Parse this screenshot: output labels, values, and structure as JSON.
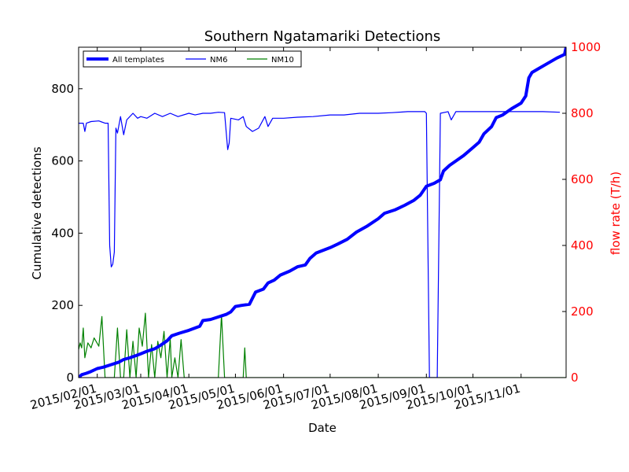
{
  "chart_data": {
    "type": "line",
    "title": "Southern Ngatamariki Detections",
    "xlabel": "Date",
    "ylabel": "Cumulative detections",
    "y2label": "flow rate (T/h)",
    "xlim": [
      "2015-01-20",
      "2015-11-30"
    ],
    "ylim": [
      0,
      915
    ],
    "y2lim": [
      0,
      1000
    ],
    "x_ticks": [
      "2015/02/01",
      "2015/03/01",
      "2015/04/01",
      "2015/05/01",
      "2015/06/01",
      "2015/07/01",
      "2015/08/01",
      "2015/09/01",
      "2015/10/01",
      "2015/11/01"
    ],
    "y_ticks": [
      0,
      200,
      400,
      600,
      800
    ],
    "y2_ticks": [
      0,
      200,
      400,
      600,
      800,
      1000
    ],
    "grid": false,
    "legend_position": "top-left",
    "colors": {
      "all_templates": "#0000ff",
      "nm6": "#0000ff",
      "nm10": "#008000",
      "y2_axis": "#ff0000"
    },
    "series": [
      {
        "name": "All templates",
        "axis": "left",
        "points": [
          [
            "2015-01-20",
            0
          ],
          [
            "2015-01-22",
            8
          ],
          [
            "2015-01-25",
            12
          ],
          [
            "2015-01-28",
            17
          ],
          [
            "2015-02-01",
            25
          ],
          [
            "2015-02-05",
            29
          ],
          [
            "2015-02-10",
            36
          ],
          [
            "2015-02-15",
            43
          ],
          [
            "2015-02-18",
            50
          ],
          [
            "2015-02-22",
            55
          ],
          [
            "2015-02-26",
            61
          ],
          [
            "2015-03-01",
            66
          ],
          [
            "2015-03-05",
            73
          ],
          [
            "2015-03-10",
            80
          ],
          [
            "2015-03-14",
            90
          ],
          [
            "2015-03-18",
            102
          ],
          [
            "2015-03-21",
            116
          ],
          [
            "2015-03-26",
            123
          ],
          [
            "2015-04-01",
            131
          ],
          [
            "2015-04-08",
            142
          ],
          [
            "2015-04-10",
            158
          ],
          [
            "2015-04-15",
            161
          ],
          [
            "2015-04-20",
            168
          ],
          [
            "2015-04-25",
            175
          ],
          [
            "2015-04-28",
            182
          ],
          [
            "2015-05-01",
            197
          ],
          [
            "2015-05-05",
            200
          ],
          [
            "2015-05-10",
            203
          ],
          [
            "2015-05-14",
            237
          ],
          [
            "2015-05-19",
            245
          ],
          [
            "2015-05-22",
            262
          ],
          [
            "2015-05-26",
            270
          ],
          [
            "2015-05-30",
            284
          ],
          [
            "2015-06-05",
            295
          ],
          [
            "2015-06-10",
            307
          ],
          [
            "2015-06-15",
            312
          ],
          [
            "2015-06-18",
            330
          ],
          [
            "2015-06-22",
            345
          ],
          [
            "2015-07-01",
            360
          ],
          [
            "2015-07-06",
            370
          ],
          [
            "2015-07-12",
            383
          ],
          [
            "2015-07-18",
            403
          ],
          [
            "2015-07-25",
            420
          ],
          [
            "2015-08-01",
            440
          ],
          [
            "2015-08-05",
            455
          ],
          [
            "2015-08-12",
            465
          ],
          [
            "2015-08-18",
            477
          ],
          [
            "2015-08-24",
            491
          ],
          [
            "2015-08-28",
            505
          ],
          [
            "2015-09-01",
            530
          ],
          [
            "2015-09-06",
            538
          ],
          [
            "2015-09-10",
            548
          ],
          [
            "2015-09-12",
            572
          ],
          [
            "2015-09-16",
            588
          ],
          [
            "2015-09-20",
            600
          ],
          [
            "2015-09-25",
            615
          ],
          [
            "2015-10-01",
            637
          ],
          [
            "2015-10-05",
            652
          ],
          [
            "2015-10-08",
            675
          ],
          [
            "2015-10-13",
            695
          ],
          [
            "2015-10-16",
            720
          ],
          [
            "2015-10-20",
            727
          ],
          [
            "2015-10-26",
            745
          ],
          [
            "2015-11-01",
            760
          ],
          [
            "2015-11-04",
            780
          ],
          [
            "2015-11-06",
            830
          ],
          [
            "2015-11-08",
            845
          ],
          [
            "2015-11-12",
            855
          ],
          [
            "2015-11-18",
            870
          ],
          [
            "2015-11-24",
            885
          ],
          [
            "2015-11-29",
            895
          ],
          [
            "2015-11-30",
            915
          ]
        ]
      },
      {
        "name": "NM6",
        "axis": "right",
        "points": [
          [
            "2015-01-20",
            770
          ],
          [
            "2015-01-23",
            770
          ],
          [
            "2015-01-24",
            745
          ],
          [
            "2015-01-25",
            770
          ],
          [
            "2015-01-28",
            775
          ],
          [
            "2015-02-02",
            777
          ],
          [
            "2015-02-06",
            770
          ],
          [
            "2015-02-08",
            770
          ],
          [
            "2015-02-09",
            400
          ],
          [
            "2015-02-10",
            335
          ],
          [
            "2015-02-11",
            343
          ],
          [
            "2015-02-12",
            380
          ],
          [
            "2015-02-13",
            755
          ],
          [
            "2015-02-14",
            740
          ],
          [
            "2015-02-16",
            790
          ],
          [
            "2015-02-18",
            735
          ],
          [
            "2015-02-20",
            780
          ],
          [
            "2015-02-24",
            800
          ],
          [
            "2015-02-27",
            785
          ],
          [
            "2015-03-01",
            790
          ],
          [
            "2015-03-05",
            785
          ],
          [
            "2015-03-10",
            800
          ],
          [
            "2015-03-15",
            790
          ],
          [
            "2015-03-20",
            800
          ],
          [
            "2015-03-25",
            790
          ],
          [
            "2015-04-01",
            800
          ],
          [
            "2015-04-05",
            795
          ],
          [
            "2015-04-10",
            800
          ],
          [
            "2015-04-15",
            800
          ],
          [
            "2015-04-20",
            803
          ],
          [
            "2015-04-24",
            802
          ],
          [
            "2015-04-26",
            690
          ],
          [
            "2015-04-27",
            710
          ],
          [
            "2015-04-28",
            785
          ],
          [
            "2015-05-03",
            780
          ],
          [
            "2015-05-06",
            790
          ],
          [
            "2015-05-08",
            760
          ],
          [
            "2015-05-12",
            745
          ],
          [
            "2015-05-16",
            755
          ],
          [
            "2015-05-20",
            790
          ],
          [
            "2015-05-22",
            760
          ],
          [
            "2015-05-25",
            785
          ],
          [
            "2015-06-01",
            785
          ],
          [
            "2015-06-10",
            788
          ],
          [
            "2015-06-20",
            790
          ],
          [
            "2015-07-01",
            795
          ],
          [
            "2015-07-10",
            795
          ],
          [
            "2015-07-20",
            800
          ],
          [
            "2015-08-01",
            800
          ],
          [
            "2015-08-10",
            802
          ],
          [
            "2015-08-20",
            805
          ],
          [
            "2015-08-31",
            805
          ],
          [
            "2015-09-01",
            800
          ],
          [
            "2015-09-03",
            0
          ],
          [
            "2015-09-08",
            0
          ],
          [
            "2015-09-10",
            800
          ],
          [
            "2015-09-15",
            805
          ],
          [
            "2015-09-17",
            780
          ],
          [
            "2015-09-20",
            805
          ],
          [
            "2015-10-01",
            805
          ],
          [
            "2015-10-15",
            805
          ],
          [
            "2015-11-01",
            805
          ],
          [
            "2015-11-15",
            805
          ],
          [
            "2015-11-26",
            803
          ]
        ]
      },
      {
        "name": "NM10",
        "axis": "right",
        "points": [
          [
            "2015-01-20",
            85
          ],
          [
            "2015-01-21",
            105
          ],
          [
            "2015-01-22",
            90
          ],
          [
            "2015-01-23",
            150
          ],
          [
            "2015-01-24",
            60
          ],
          [
            "2015-01-26",
            105
          ],
          [
            "2015-01-28",
            90
          ],
          [
            "2015-01-30",
            120
          ],
          [
            "2015-02-02",
            95
          ],
          [
            "2015-02-04",
            185
          ],
          [
            "2015-02-06",
            0
          ],
          [
            "2015-02-12",
            0
          ],
          [
            "2015-02-14",
            150
          ],
          [
            "2015-02-16",
            0
          ],
          [
            "2015-02-18",
            0
          ],
          [
            "2015-02-20",
            145
          ],
          [
            "2015-02-22",
            0
          ],
          [
            "2015-02-24",
            110
          ],
          [
            "2015-02-26",
            0
          ],
          [
            "2015-02-28",
            150
          ],
          [
            "2015-03-02",
            95
          ],
          [
            "2015-03-04",
            195
          ],
          [
            "2015-03-06",
            0
          ],
          [
            "2015-03-08",
            100
          ],
          [
            "2015-03-10",
            0
          ],
          [
            "2015-03-12",
            110
          ],
          [
            "2015-03-14",
            60
          ],
          [
            "2015-03-16",
            140
          ],
          [
            "2015-03-18",
            0
          ],
          [
            "2015-03-20",
            118
          ],
          [
            "2015-03-21",
            0
          ],
          [
            "2015-03-23",
            60
          ],
          [
            "2015-03-25",
            0
          ],
          [
            "2015-03-27",
            115
          ],
          [
            "2015-03-29",
            0
          ],
          [
            "2015-04-01",
            0
          ],
          [
            "2015-04-20",
            0
          ],
          [
            "2015-04-22",
            190
          ],
          [
            "2015-04-24",
            0
          ],
          [
            "2015-05-06",
            0
          ],
          [
            "2015-05-07",
            90
          ],
          [
            "2015-05-08",
            0
          ],
          [
            "2015-11-30",
            0
          ]
        ]
      }
    ]
  }
}
